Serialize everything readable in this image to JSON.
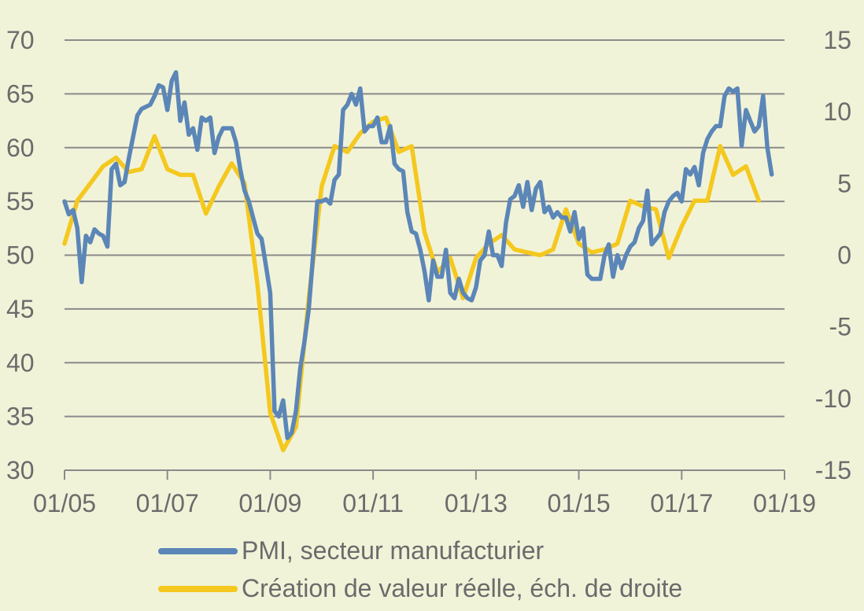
{
  "colors": {
    "background": "#f1f3d9",
    "grid": "#8a8a8a",
    "text": "#6b6b6b",
    "pmi": "#5b86b7",
    "value": "#f4c81e"
  },
  "chart_data": {
    "type": "line",
    "title": "",
    "grid": true,
    "legend_position": "bottom",
    "x_axis": {
      "type": "date",
      "range": [
        "2005-01",
        "2019-01"
      ],
      "tick_labels": [
        "01/05",
        "01/07",
        "01/09",
        "01/11",
        "01/13",
        "01/15",
        "01/17",
        "01/19"
      ]
    },
    "y_axis_left": {
      "range": [
        30,
        70
      ],
      "ticks": [
        30,
        35,
        40,
        45,
        50,
        55,
        60,
        65,
        70
      ]
    },
    "y_axis_right": {
      "range": [
        -15,
        15
      ],
      "ticks": [
        -15,
        -10,
        -5,
        0,
        5,
        10,
        15
      ]
    },
    "series": [
      {
        "name": "PMI, secteur manufacturier",
        "axis": "left",
        "color": "#5b86b7",
        "points": [
          [
            "2005-01",
            55.0
          ],
          [
            "2005-02",
            53.8
          ],
          [
            "2005-03",
            54.2
          ],
          [
            "2005-04",
            52.5
          ],
          [
            "2005-05",
            47.5
          ],
          [
            "2005-06",
            51.8
          ],
          [
            "2005-07",
            51.2
          ],
          [
            "2005-08",
            52.4
          ],
          [
            "2005-09",
            52.0
          ],
          [
            "2005-10",
            51.8
          ],
          [
            "2005-11",
            50.8
          ],
          [
            "2005-12",
            58.0
          ],
          [
            "2006-01",
            58.5
          ],
          [
            "2006-02",
            56.5
          ],
          [
            "2006-03",
            56.8
          ],
          [
            "2006-04",
            59.0
          ],
          [
            "2006-05",
            61.0
          ],
          [
            "2006-06",
            63.0
          ],
          [
            "2006-07",
            63.6
          ],
          [
            "2006-08",
            63.8
          ],
          [
            "2006-09",
            64.0
          ],
          [
            "2006-10",
            64.8
          ],
          [
            "2006-11",
            65.8
          ],
          [
            "2006-12",
            65.6
          ],
          [
            "2007-01",
            63.5
          ],
          [
            "2007-02",
            66.2
          ],
          [
            "2007-03",
            67.0
          ],
          [
            "2007-04",
            62.5
          ],
          [
            "2007-05",
            64.2
          ],
          [
            "2007-06",
            61.2
          ],
          [
            "2007-07",
            61.8
          ],
          [
            "2007-08",
            59.8
          ],
          [
            "2007-09",
            62.8
          ],
          [
            "2007-10",
            62.5
          ],
          [
            "2007-11",
            62.8
          ],
          [
            "2007-12",
            59.5
          ],
          [
            "2008-01",
            61.0
          ],
          [
            "2008-02",
            61.8
          ],
          [
            "2008-03",
            61.8
          ],
          [
            "2008-04",
            61.8
          ],
          [
            "2008-05",
            60.5
          ],
          [
            "2008-06",
            58.0
          ],
          [
            "2008-07",
            56.0
          ],
          [
            "2008-08",
            55.0
          ],
          [
            "2008-09",
            53.5
          ],
          [
            "2008-10",
            52.0
          ],
          [
            "2008-11",
            51.5
          ],
          [
            "2008-12",
            49.0
          ],
          [
            "2009-01",
            46.5
          ],
          [
            "2009-02",
            35.5
          ],
          [
            "2009-03",
            35.0
          ],
          [
            "2009-04",
            36.5
          ],
          [
            "2009-05",
            33.0
          ],
          [
            "2009-06",
            33.5
          ],
          [
            "2009-07",
            35.5
          ],
          [
            "2009-08",
            39.5
          ],
          [
            "2009-09",
            42.0
          ],
          [
            "2009-10",
            45.0
          ],
          [
            "2009-11",
            50.0
          ],
          [
            "2009-12",
            55.0
          ],
          [
            "2010-01",
            55.0
          ],
          [
            "2010-02",
            55.2
          ],
          [
            "2010-03",
            54.8
          ],
          [
            "2010-04",
            57.0
          ],
          [
            "2010-05",
            57.5
          ],
          [
            "2010-06",
            63.5
          ],
          [
            "2010-07",
            64.0
          ],
          [
            "2010-08",
            65.0
          ],
          [
            "2010-09",
            64.0
          ],
          [
            "2010-10",
            65.5
          ],
          [
            "2010-11",
            61.5
          ],
          [
            "2010-12",
            62.0
          ],
          [
            "2011-01",
            62.0
          ],
          [
            "2011-02",
            62.8
          ],
          [
            "2011-03",
            60.5
          ],
          [
            "2011-04",
            60.5
          ],
          [
            "2011-05",
            62.0
          ],
          [
            "2011-06",
            58.5
          ],
          [
            "2011-07",
            58.0
          ],
          [
            "2011-08",
            57.8
          ],
          [
            "2011-09",
            54.0
          ],
          [
            "2011-10",
            52.2
          ],
          [
            "2011-11",
            52.0
          ],
          [
            "2011-12",
            50.5
          ],
          [
            "2012-01",
            48.5
          ],
          [
            "2012-02",
            45.8
          ],
          [
            "2012-03",
            49.5
          ],
          [
            "2012-04",
            48.0
          ],
          [
            "2012-05",
            48.0
          ],
          [
            "2012-06",
            50.5
          ],
          [
            "2012-07",
            46.5
          ],
          [
            "2012-08",
            46.0
          ],
          [
            "2012-09",
            47.8
          ],
          [
            "2012-10",
            46.5
          ],
          [
            "2012-11",
            46.0
          ],
          [
            "2012-12",
            45.8
          ],
          [
            "2013-01",
            47.0
          ],
          [
            "2013-02",
            49.5
          ],
          [
            "2013-03",
            50.0
          ],
          [
            "2013-04",
            52.2
          ],
          [
            "2013-05",
            50.0
          ],
          [
            "2013-06",
            50.0
          ],
          [
            "2013-07",
            49.0
          ],
          [
            "2013-08",
            53.0
          ],
          [
            "2013-09",
            55.2
          ],
          [
            "2013-10",
            55.5
          ],
          [
            "2013-11",
            56.5
          ],
          [
            "2013-12",
            54.5
          ],
          [
            "2014-01",
            56.8
          ],
          [
            "2014-02",
            54.2
          ],
          [
            "2014-03",
            56.2
          ],
          [
            "2014-04",
            56.8
          ],
          [
            "2014-05",
            54.0
          ],
          [
            "2014-06",
            54.5
          ],
          [
            "2014-07",
            53.5
          ],
          [
            "2014-08",
            54.0
          ],
          [
            "2014-09",
            53.5
          ],
          [
            "2014-10",
            53.5
          ],
          [
            "2014-11",
            52.2
          ],
          [
            "2014-12",
            54.0
          ],
          [
            "2015-01",
            51.5
          ],
          [
            "2015-02",
            52.5
          ],
          [
            "2015-03",
            48.2
          ],
          [
            "2015-04",
            47.8
          ],
          [
            "2015-05",
            47.8
          ],
          [
            "2015-06",
            47.8
          ],
          [
            "2015-07",
            50.0
          ],
          [
            "2015-08",
            51.0
          ],
          [
            "2015-09",
            48.0
          ],
          [
            "2015-10",
            50.0
          ],
          [
            "2015-11",
            48.8
          ],
          [
            "2015-12",
            50.0
          ],
          [
            "2016-01",
            50.8
          ],
          [
            "2016-02",
            51.2
          ],
          [
            "2016-03",
            52.5
          ],
          [
            "2016-04",
            53.2
          ],
          [
            "2016-05",
            56.0
          ],
          [
            "2016-06",
            51.0
          ],
          [
            "2016-07",
            51.5
          ],
          [
            "2016-08",
            52.0
          ],
          [
            "2016-09",
            54.0
          ],
          [
            "2016-10",
            55.0
          ],
          [
            "2016-11",
            55.5
          ],
          [
            "2016-12",
            55.8
          ],
          [
            "2017-01",
            55.0
          ],
          [
            "2017-02",
            58.0
          ],
          [
            "2017-03",
            57.5
          ],
          [
            "2017-04",
            58.2
          ],
          [
            "2017-05",
            56.5
          ],
          [
            "2017-06",
            59.5
          ],
          [
            "2017-07",
            60.8
          ],
          [
            "2017-08",
            61.5
          ],
          [
            "2017-09",
            62.0
          ],
          [
            "2017-10",
            62.0
          ],
          [
            "2017-11",
            64.8
          ],
          [
            "2017-12",
            65.5
          ],
          [
            "2018-01",
            65.2
          ],
          [
            "2018-02",
            65.5
          ],
          [
            "2018-03",
            60.2
          ],
          [
            "2018-04",
            63.5
          ],
          [
            "2018-05",
            62.5
          ],
          [
            "2018-06",
            61.5
          ],
          [
            "2018-07",
            62.0
          ],
          [
            "2018-08",
            64.8
          ],
          [
            "2018-09",
            60.0
          ],
          [
            "2018-10",
            57.5
          ]
        ]
      },
      {
        "name": "Création de valeur réelle, éch. de droite",
        "axis": "right",
        "color": "#f4c81e",
        "points": [
          [
            "2005-01",
            0.8
          ],
          [
            "2005-04",
            3.8
          ],
          [
            "2005-07",
            5.0
          ],
          [
            "2005-10",
            6.2
          ],
          [
            "2006-01",
            6.8
          ],
          [
            "2006-04",
            5.8
          ],
          [
            "2006-07",
            6.0
          ],
          [
            "2006-10",
            8.3
          ],
          [
            "2007-01",
            6.0
          ],
          [
            "2007-04",
            5.6
          ],
          [
            "2007-07",
            5.6
          ],
          [
            "2007-10",
            2.9
          ],
          [
            "2008-01",
            4.8
          ],
          [
            "2008-04",
            6.4
          ],
          [
            "2008-07",
            5.0
          ],
          [
            "2008-10",
            -2.0
          ],
          [
            "2009-01",
            -11.0
          ],
          [
            "2009-04",
            -13.6
          ],
          [
            "2009-07",
            -12.0
          ],
          [
            "2009-10",
            -3.0
          ],
          [
            "2010-01",
            4.8
          ],
          [
            "2010-04",
            7.6
          ],
          [
            "2010-07",
            7.2
          ],
          [
            "2010-10",
            8.5
          ],
          [
            "2011-01",
            9.3
          ],
          [
            "2011-04",
            9.6
          ],
          [
            "2011-07",
            7.2
          ],
          [
            "2011-10",
            7.6
          ],
          [
            "2012-01",
            1.6
          ],
          [
            "2012-04",
            -1.2
          ],
          [
            "2012-07",
            -0.2
          ],
          [
            "2012-10",
            -3.0
          ],
          [
            "2013-01",
            -0.2
          ],
          [
            "2013-04",
            0.8
          ],
          [
            "2013-07",
            1.4
          ],
          [
            "2013-10",
            0.4
          ],
          [
            "2014-01",
            0.2
          ],
          [
            "2014-04",
            0.0
          ],
          [
            "2014-07",
            0.4
          ],
          [
            "2014-10",
            3.2
          ],
          [
            "2015-01",
            0.8
          ],
          [
            "2015-04",
            0.2
          ],
          [
            "2015-07",
            0.4
          ],
          [
            "2015-10",
            0.8
          ],
          [
            "2016-01",
            3.8
          ],
          [
            "2016-04",
            3.4
          ],
          [
            "2016-07",
            3.2
          ],
          [
            "2016-10",
            -0.2
          ],
          [
            "2017-01",
            2.0
          ],
          [
            "2017-04",
            3.8
          ],
          [
            "2017-07",
            3.8
          ],
          [
            "2017-10",
            7.6
          ],
          [
            "2018-01",
            5.6
          ],
          [
            "2018-04",
            6.2
          ],
          [
            "2018-07",
            3.8
          ]
        ]
      }
    ]
  }
}
